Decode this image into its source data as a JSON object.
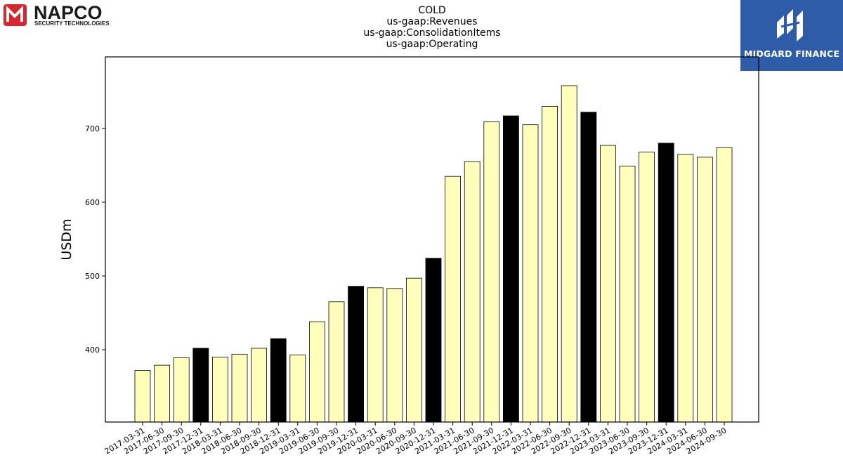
{
  "logos": {
    "napco": {
      "name": "NAPCO",
      "tagline": "SECURITY TECHNOLOGIES",
      "accent": "#d7262e"
    },
    "midgard": {
      "name": "MIDGARD FINANCE",
      "color": "#2f5ca8"
    }
  },
  "chart_data": {
    "type": "bar",
    "title_lines": [
      "COLD",
      "us-gaap:Revenues",
      "us-gaap:ConsolidationItems",
      "us-gaap:Operating"
    ],
    "xlabel": "",
    "ylabel": "USDm",
    "ylim": [
      302,
      797
    ],
    "yticks": [
      400,
      500,
      600,
      700
    ],
    "grid": false,
    "colors": {
      "default": "#ffffbb",
      "highlight": "#000000",
      "edge": "#000000"
    },
    "categories": [
      "2017-03-31",
      "2017-06-30",
      "2017-09-30",
      "2017-12-31",
      "2018-03-31",
      "2018-06-30",
      "2018-09-30",
      "2018-12-31",
      "2019-03-31",
      "2019-06-30",
      "2019-09-30",
      "2019-12-31",
      "2020-03-31",
      "2020-06-30",
      "2020-09-30",
      "2020-12-31",
      "2021-03-31",
      "2021-06-30",
      "2021-09-30",
      "2021-12-31",
      "2022-03-31",
      "2022-06-30",
      "2022-09-30",
      "2022-12-31",
      "2023-03-31",
      "2023-06-30",
      "2023-09-30",
      "2023-12-31",
      "2024-03-31",
      "2024-06-30",
      "2024-09-30"
    ],
    "values": [
      372,
      379,
      389,
      402,
      390,
      394,
      402,
      415,
      393,
      438,
      465,
      486,
      484,
      483,
      497,
      524,
      635,
      655,
      709,
      717,
      705,
      730,
      758,
      722,
      677,
      649,
      668,
      680,
      665,
      661,
      674
    ],
    "highlight": [
      false,
      false,
      false,
      true,
      false,
      false,
      false,
      true,
      false,
      false,
      false,
      true,
      false,
      false,
      false,
      true,
      false,
      false,
      false,
      true,
      false,
      false,
      false,
      true,
      false,
      false,
      false,
      true,
      false,
      false,
      false
    ]
  }
}
